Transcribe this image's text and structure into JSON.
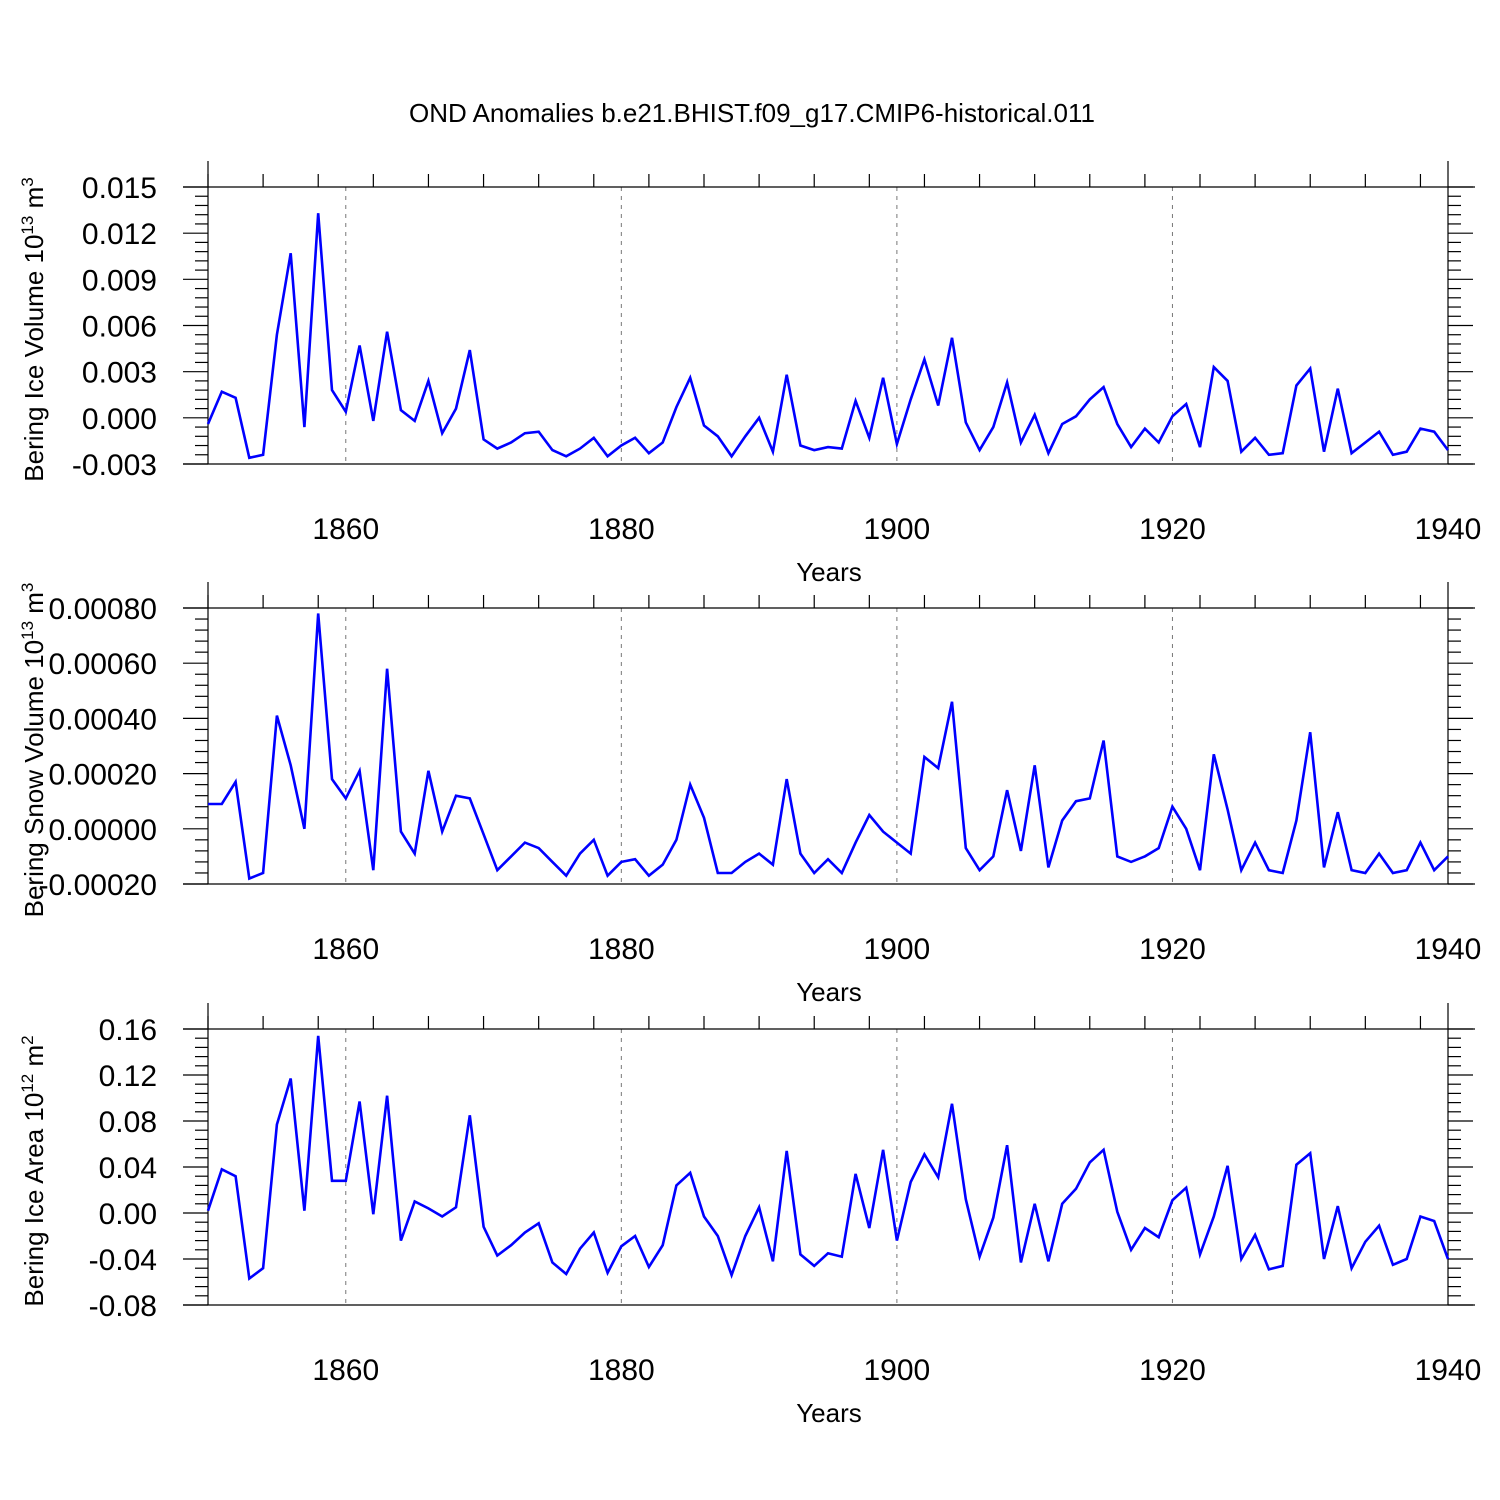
{
  "title": "OND Anomalies b.e21.BHIST.f09_g17.CMIP6-historical.011",
  "colors": {
    "series": "#0000ff",
    "axes": "#000000",
    "grid": "#777777",
    "background": "#ffffff"
  },
  "chart_data": [
    {
      "type": "line",
      "panel": "top",
      "xlabel": "Years",
      "ylabel": {
        "text": "Bering Ice Volume 10",
        "sup": "13",
        "unit": " m",
        "unit_sup": "3"
      },
      "xlim": [
        1850,
        1940
      ],
      "ylim": [
        -0.003,
        0.015
      ],
      "x_ticks": [
        1860,
        1880,
        1900,
        1920,
        1940
      ],
      "y_ticks": [
        -0.003,
        0.0,
        0.003,
        0.006,
        0.009,
        0.012,
        0.015
      ],
      "y_tick_labels": [
        "-0.003",
        "0.000",
        "0.003",
        "0.006",
        "0.009",
        "0.012",
        "0.015"
      ],
      "grid": "dashed vertical at major x ticks",
      "series": [
        {
          "name": "Bering Ice Volume",
          "color": "#0000ff",
          "x_start": 1850,
          "values": [
            -0.0004,
            0.0017,
            0.0013,
            -0.0026,
            -0.0024,
            0.0054,
            0.0107,
            -0.0006,
            0.0133,
            0.0018,
            0.0004,
            0.0047,
            -0.0002,
            0.0056,
            0.0005,
            -0.0002,
            0.0024,
            -0.001,
            0.0006,
            0.0044,
            -0.0014,
            -0.002,
            -0.0016,
            -0.001,
            -0.0009,
            -0.0021,
            -0.0025,
            -0.002,
            -0.0013,
            -0.0025,
            -0.0018,
            -0.0013,
            -0.0023,
            -0.0016,
            0.0007,
            0.0026,
            -0.0005,
            -0.0012,
            -0.0025,
            -0.0012,
            0.0,
            -0.0022,
            0.0028,
            -0.0018,
            -0.0021,
            -0.0019,
            -0.002,
            0.0011,
            -0.0013,
            0.0026,
            -0.0017,
            0.0012,
            0.0038,
            0.0008,
            0.0052,
            -0.0003,
            -0.0021,
            -0.0006,
            0.0023,
            -0.0016,
            0.0002,
            -0.0023,
            -0.0004,
            0.0001,
            0.0012,
            0.002,
            -0.0004,
            -0.0019,
            -0.0007,
            -0.0016,
            0.0001,
            0.0009,
            -0.0019,
            0.0033,
            0.0024,
            -0.0022,
            -0.0013,
            -0.0024,
            -0.0023,
            0.0021,
            0.0032,
            -0.0022,
            0.0019,
            -0.0023,
            -0.0016,
            -0.0009,
            -0.0024,
            -0.0022,
            -0.0007,
            -0.0009,
            -0.0021
          ]
        }
      ]
    },
    {
      "type": "line",
      "panel": "middle",
      "xlabel": "Years",
      "ylabel": {
        "text": "Bering Snow Volume 10",
        "sup": "13",
        "unit": " m",
        "unit_sup": "3"
      },
      "xlim": [
        1850,
        1940
      ],
      "ylim": [
        -0.0002,
        0.0008
      ],
      "x_ticks": [
        1860,
        1880,
        1900,
        1920,
        1940
      ],
      "y_ticks": [
        -0.0002,
        0.0,
        0.0002,
        0.0004,
        0.0006,
        0.0008
      ],
      "y_tick_labels": [
        "-0.00020",
        "0.00000",
        "0.00020",
        "0.00040",
        "0.00060",
        "0.00080"
      ],
      "grid": "dashed vertical at major x ticks",
      "series": [
        {
          "name": "Bering Snow Volume",
          "color": "#0000ff",
          "x_start": 1850,
          "values": [
            9e-05,
            9e-05,
            0.00017,
            -0.00018,
            -0.00016,
            0.00041,
            0.00023,
            0.0,
            0.00078,
            0.00018,
            0.00011,
            0.00021,
            -0.00015,
            0.00058,
            -1e-05,
            -9e-05,
            0.00021,
            -1e-05,
            0.00012,
            0.00011,
            -2e-05,
            -0.00015,
            -0.0001,
            -5e-05,
            -7e-05,
            -0.00012,
            -0.00017,
            -9e-05,
            -4e-05,
            -0.00017,
            -0.00012,
            -0.00011,
            -0.00017,
            -0.00013,
            -4e-05,
            0.00016,
            4e-05,
            -0.00016,
            -0.00016,
            -0.00012,
            -9e-05,
            -0.00013,
            0.00018,
            -9e-05,
            -0.00016,
            -0.00011,
            -0.00016,
            -5e-05,
            5e-05,
            -1e-05,
            -5e-05,
            -9e-05,
            0.00026,
            0.00022,
            0.00046,
            -7e-05,
            -0.00015,
            -0.0001,
            0.00014,
            -8e-05,
            0.00023,
            -0.00014,
            3e-05,
            0.0001,
            0.00011,
            0.00032,
            -0.0001,
            -0.00012,
            -0.0001,
            -7e-05,
            8e-05,
            0.0,
            -0.00015,
            0.00027,
            7e-05,
            -0.00015,
            -5e-05,
            -0.00015,
            -0.00016,
            3e-05,
            0.00035,
            -0.00014,
            6e-05,
            -0.00015,
            -0.00016,
            -9e-05,
            -0.00016,
            -0.00015,
            -5e-05,
            -0.00015,
            -0.0001
          ]
        }
      ]
    },
    {
      "type": "line",
      "panel": "bottom",
      "xlabel": "Years",
      "ylabel": {
        "text": "Bering Ice Area 10",
        "sup": "12",
        "unit": " m",
        "unit_sup": "2"
      },
      "xlim": [
        1850,
        1940
      ],
      "ylim": [
        -0.08,
        0.16
      ],
      "x_ticks": [
        1860,
        1880,
        1900,
        1920,
        1940
      ],
      "y_ticks": [
        -0.08,
        -0.04,
        0.0,
        0.04,
        0.08,
        0.12,
        0.16
      ],
      "y_tick_labels": [
        "-0.08",
        "-0.04",
        "0.00",
        "0.04",
        "0.08",
        "0.12",
        "0.16"
      ],
      "grid": "dashed vertical at major x ticks",
      "series": [
        {
          "name": "Bering Ice Area",
          "color": "#0000ff",
          "x_start": 1850,
          "values": [
            0.002,
            0.038,
            0.032,
            -0.057,
            -0.048,
            0.077,
            0.117,
            0.002,
            0.154,
            0.028,
            0.028,
            0.097,
            -0.001,
            0.102,
            -0.024,
            0.01,
            0.004,
            -0.003,
            0.005,
            0.085,
            -0.012,
            -0.037,
            -0.028,
            -0.017,
            -0.009,
            -0.043,
            -0.053,
            -0.031,
            -0.017,
            -0.052,
            -0.029,
            -0.02,
            -0.047,
            -0.028,
            0.024,
            0.035,
            -0.003,
            -0.02,
            -0.054,
            -0.02,
            0.005,
            -0.042,
            0.054,
            -0.036,
            -0.046,
            -0.035,
            -0.038,
            0.034,
            -0.013,
            0.055,
            -0.024,
            0.027,
            0.051,
            0.031,
            0.095,
            0.012,
            -0.038,
            -0.004,
            0.059,
            -0.043,
            0.008,
            -0.042,
            0.008,
            0.021,
            0.044,
            0.055,
            0.001,
            -0.032,
            -0.013,
            -0.021,
            0.011,
            0.022,
            -0.036,
            -0.003,
            0.041,
            -0.04,
            -0.019,
            -0.049,
            -0.046,
            0.042,
            0.052,
            -0.04,
            0.006,
            -0.048,
            -0.025,
            -0.011,
            -0.045,
            -0.04,
            -0.003,
            -0.007,
            -0.04
          ]
        }
      ]
    }
  ]
}
